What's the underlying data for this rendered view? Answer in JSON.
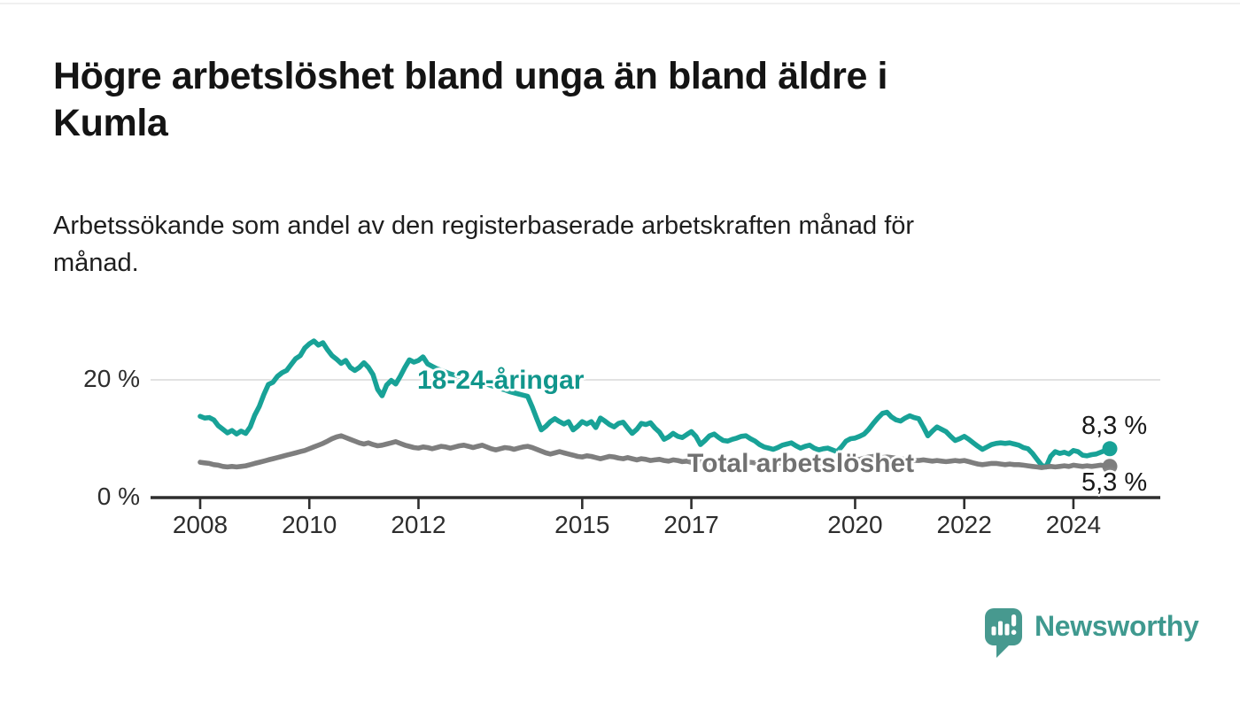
{
  "header": {
    "title": "Högre arbetslöshet bland unga än bland äldre i Kumla",
    "title_lines": [
      "Högre arbetslöshet bland unga än bland äldre i",
      "Kumla"
    ],
    "subtitle": "Arbetssökande som andel av den registerbaserade arbetskraften månad för månad.",
    "subtitle_lines": [
      "Arbetssökande som andel av den registerbaserade arbetskraften månad för",
      "månad."
    ]
  },
  "chart_data": {
    "type": "line",
    "title": "Högre arbetslöshet bland unga än bland äldre i Kumla",
    "xlabel": "",
    "ylabel": "",
    "unit": "%",
    "x_start": "2008-01",
    "x_end": "2024-09",
    "x_step_months": 1,
    "ylim": [
      0,
      28
    ],
    "grid_values": [
      20
    ],
    "legend_position": "inline-labels",
    "x_axis": {
      "ticks": [
        {
          "year": 2008,
          "label": "2008"
        },
        {
          "year": 2010,
          "label": "2010"
        },
        {
          "year": 2012,
          "label": "2012"
        },
        {
          "year": 2015,
          "label": "2015"
        },
        {
          "year": 2017,
          "label": "2017"
        },
        {
          "year": 2020,
          "label": "2020"
        },
        {
          "year": 2022,
          "label": "2022"
        },
        {
          "year": 2024,
          "label": "2024"
        }
      ]
    },
    "y_axis": {
      "ticks": [
        {
          "value": 0,
          "label": "0 %"
        },
        {
          "value": 20,
          "label": "20 %"
        }
      ]
    },
    "series": [
      {
        "name": "18-24-åringar",
        "color": "#18a297",
        "label_color": "#11968c",
        "end_value": 8.3,
        "end_label": "8,3 %",
        "values": [
          13.8,
          13.5,
          13.6,
          13.2,
          12.2,
          11.6,
          11.0,
          11.4,
          10.8,
          11.3,
          10.9,
          12.0,
          14.0,
          15.5,
          17.5,
          19.2,
          19.6,
          20.6,
          21.2,
          21.6,
          22.6,
          23.6,
          24.1,
          25.4,
          26.1,
          26.6,
          25.9,
          26.3,
          25.1,
          24.1,
          23.5,
          22.8,
          23.3,
          22.1,
          21.6,
          22.1,
          22.9,
          22.1,
          20.9,
          18.4,
          17.3,
          19.1,
          19.9,
          19.3,
          20.6,
          22.1,
          23.4,
          23.0,
          23.3,
          23.9,
          22.7,
          22.3,
          21.9,
          21.6,
          21.3,
          21.0,
          20.8,
          20.6,
          20.4,
          20.2,
          20.0,
          19.8,
          19.6,
          19.3,
          19.0,
          18.8,
          18.5,
          18.3,
          18.0,
          17.8,
          17.6,
          17.4,
          17.2,
          15.4,
          13.4,
          11.5,
          12.1,
          12.9,
          13.4,
          12.9,
          12.5,
          12.9,
          11.5,
          12.1,
          12.9,
          12.5,
          12.9,
          11.9,
          13.5,
          13.0,
          12.4,
          12.0,
          12.6,
          12.8,
          11.8,
          10.9,
          11.6,
          12.6,
          12.4,
          12.7,
          11.8,
          11.1,
          9.9,
          10.3,
          10.9,
          10.4,
          10.2,
          10.7,
          11.2,
          10.4,
          9.0,
          9.7,
          10.5,
          10.8,
          10.2,
          9.7,
          9.6,
          9.9,
          10.1,
          10.4,
          10.5,
          10.0,
          9.6,
          9.0,
          8.6,
          8.4,
          8.2,
          8.5,
          8.9,
          9.1,
          9.3,
          8.8,
          8.4,
          8.7,
          8.9,
          8.4,
          8.1,
          8.3,
          8.4,
          8.1,
          7.8,
          8.6,
          9.6,
          10.0,
          10.1,
          10.4,
          10.8,
          11.6,
          12.6,
          13.5,
          14.3,
          14.5,
          13.7,
          13.2,
          13.0,
          13.5,
          13.9,
          13.6,
          13.4,
          12.0,
          10.5,
          11.3,
          12.0,
          11.6,
          11.2,
          10.4,
          9.7,
          10.0,
          10.4,
          9.9,
          9.3,
          8.7,
          8.2,
          8.6,
          9.0,
          9.2,
          9.3,
          9.2,
          9.3,
          9.1,
          8.9,
          8.5,
          8.3,
          7.5,
          6.5,
          5.5,
          5.2,
          7.0,
          7.8,
          7.5,
          7.7,
          7.4,
          8.0,
          7.8,
          7.2,
          7.1,
          7.3,
          7.4,
          7.7,
          8.0,
          8.3
        ]
      },
      {
        "name": "Total arbetslöshet",
        "color": "#7e7e7e",
        "label_color": "#717171",
        "end_value": 5.3,
        "end_label": "5,3 %",
        "values": [
          6.0,
          5.9,
          5.8,
          5.6,
          5.5,
          5.3,
          5.2,
          5.3,
          5.2,
          5.3,
          5.4,
          5.6,
          5.8,
          6.0,
          6.2,
          6.4,
          6.6,
          6.8,
          7.0,
          7.2,
          7.4,
          7.6,
          7.8,
          8.0,
          8.3,
          8.6,
          8.9,
          9.2,
          9.6,
          10.0,
          10.3,
          10.5,
          10.2,
          9.9,
          9.6,
          9.3,
          9.1,
          9.3,
          9.0,
          8.8,
          8.9,
          9.1,
          9.3,
          9.5,
          9.2,
          8.9,
          8.7,
          8.5,
          8.4,
          8.6,
          8.5,
          8.3,
          8.5,
          8.7,
          8.6,
          8.4,
          8.6,
          8.8,
          8.9,
          8.7,
          8.5,
          8.7,
          8.9,
          8.6,
          8.3,
          8.1,
          8.3,
          8.5,
          8.4,
          8.2,
          8.4,
          8.6,
          8.7,
          8.5,
          8.2,
          7.9,
          7.6,
          7.4,
          7.6,
          7.8,
          7.6,
          7.4,
          7.2,
          7.0,
          6.9,
          7.1,
          7.0,
          6.8,
          6.6,
          6.8,
          7.0,
          6.9,
          6.7,
          6.6,
          6.8,
          6.6,
          6.4,
          6.6,
          6.5,
          6.3,
          6.4,
          6.5,
          6.3,
          6.2,
          6.4,
          6.3,
          6.1,
          6.2,
          6.0,
          6.1,
          6.2,
          6.0,
          5.9,
          6.0,
          6.1,
          6.0,
          5.9,
          6.0,
          6.1,
          6.0,
          5.9,
          6.0,
          5.9,
          5.8,
          5.9,
          6.0,
          5.9,
          5.8,
          5.9,
          6.0,
          5.9,
          5.8,
          5.8,
          5.9,
          5.8,
          5.7,
          5.8,
          5.9,
          5.8,
          5.9,
          6.0,
          6.1,
          6.2,
          6.3,
          6.4,
          6.5,
          6.7,
          6.9,
          7.0,
          6.9,
          6.8,
          6.9,
          6.8,
          6.7,
          6.6,
          6.5,
          6.4,
          6.3,
          6.3,
          6.4,
          6.3,
          6.2,
          6.3,
          6.2,
          6.1,
          6.2,
          6.3,
          6.2,
          6.3,
          6.1,
          5.9,
          5.7,
          5.6,
          5.7,
          5.8,
          5.8,
          5.7,
          5.6,
          5.7,
          5.6,
          5.6,
          5.5,
          5.4,
          5.3,
          5.2,
          5.1,
          5.2,
          5.3,
          5.2,
          5.3,
          5.4,
          5.3,
          5.5,
          5.4,
          5.3,
          5.4,
          5.3,
          5.4,
          5.5,
          5.4,
          5.3
        ]
      }
    ],
    "colors": {
      "grid": "#d9d9d9",
      "axis": "#2e2e2e",
      "tick_text": "#2d2d2d",
      "value_text": "#191919"
    }
  },
  "footer": {
    "brand": "Newsworthy",
    "brand_color": "#3f998f"
  }
}
